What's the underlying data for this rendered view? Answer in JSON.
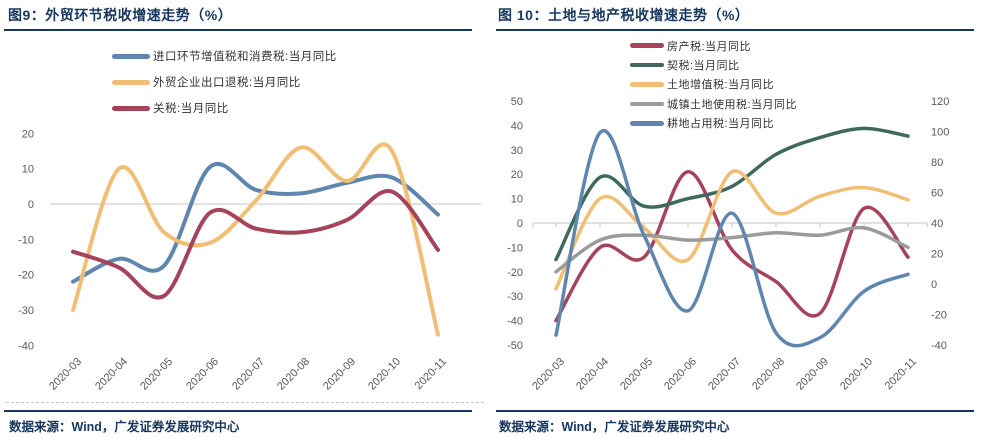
{
  "palette": {
    "title_navy": "#17375E",
    "axis_text_gray": "#595959",
    "gridline_gray": "#C6C6C6",
    "blue": "#5E86AE",
    "yellow": "#F0BE74",
    "red": "#A4435A",
    "green": "#3F695E",
    "gray": "#9B9B9B"
  },
  "figures": [
    {
      "title": "图9：外贸环节税收增速走势（%）",
      "source": "数据来源：Wind，广发证券发展研究中心",
      "chart_data": {
        "type": "line",
        "smooth": true,
        "grid": "zero-line-only",
        "legend_position": "top-left-stacked",
        "x": [
          "2020-03",
          "2020-04",
          "2020-05",
          "2020-06",
          "2020-07",
          "2020-08",
          "2020-09",
          "2020-10",
          "2020-11"
        ],
        "y_axis": {
          "min": -40,
          "max": 20,
          "ticks": [
            20,
            10,
            0,
            -10,
            -20,
            -30,
            -40
          ]
        },
        "series": [
          {
            "name": "进口环节增值税和消费税:当月同比",
            "color": "#5E86AE",
            "axis": "left",
            "values": [
              -22,
              -15.5,
              -17.5,
              10.5,
              4,
              3,
              6,
              7.5,
              -3
            ]
          },
          {
            "name": "外贸企业出口退税:当月同比",
            "color": "#F0BE74",
            "axis": "left",
            "values": [
              -30,
              10,
              -8,
              -11,
              1,
              16,
              6.5,
              15,
              -37
            ]
          },
          {
            "name": "关税:当月同比",
            "color": "#A4435A",
            "axis": "left",
            "values": [
              -13.5,
              -18,
              -26,
              -2.5,
              -7,
              -8,
              -4.5,
              3.5,
              -13
            ]
          }
        ]
      }
    },
    {
      "title": "图 10：土地与地产税收增速走势（%）",
      "source": "数据来源：Wind，广发证券发展研究中心",
      "chart_data": {
        "type": "line",
        "smooth": true,
        "grid": "zero-line-only",
        "legend_position": "top-stacked",
        "x": [
          "2020-03",
          "2020-04",
          "2020-05",
          "2020-06",
          "2020-07",
          "2020-08",
          "2020-09",
          "2020-10",
          "2020-11"
        ],
        "y_axis": {
          "min": -50,
          "max": 50,
          "ticks": [
            50,
            40,
            30,
            20,
            10,
            0,
            -10,
            -20,
            -30,
            -40,
            -50
          ]
        },
        "y_axis_right": {
          "min": -40,
          "max": 120,
          "ticks": [
            120,
            100,
            80,
            60,
            40,
            20,
            0,
            -20,
            -40
          ]
        },
        "series": [
          {
            "name": "房产税:当月同比",
            "color": "#A4435A",
            "axis": "left",
            "values": [
              -40,
              -10,
              -14,
              21,
              -11,
              -24,
              -37,
              6,
              -14
            ]
          },
          {
            "name": "契税:当月同比",
            "color": "#3F695E",
            "axis": "right",
            "values": [
              16,
              70,
              51,
              56,
              64,
              85,
              96,
              102,
              97
            ]
          },
          {
            "name": "土地增值税:当月同比",
            "color": "#F0BE74",
            "axis": "left",
            "values": [
              -27,
              10,
              -2,
              -15,
              21,
              4,
              11,
              14.5,
              9.5
            ]
          },
          {
            "name": "城镇土地使用税:当月同比",
            "color": "#9B9B9B",
            "axis": "left",
            "values": [
              -20,
              -7,
              -5,
              -7,
              -6,
              -4,
              -5,
              -2,
              -10
            ]
          },
          {
            "name": "耕地占用税:当月同比",
            "color": "#5E86AE",
            "axis": "left",
            "values": [
              -46,
              37,
              -5,
              -36,
              4,
              -45,
              -47,
              -28,
              -21
            ]
          }
        ]
      }
    }
  ]
}
